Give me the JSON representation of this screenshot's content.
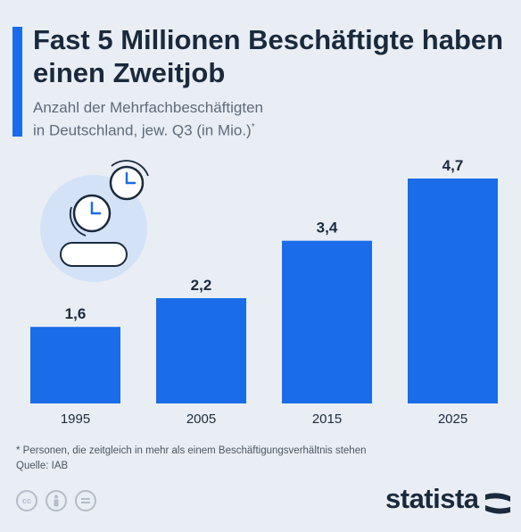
{
  "title": "Fast 5 Millionen Beschäftigte haben einen Zweitjob",
  "subtitle_line1": "Anzahl der Mehrfachbeschäftigten",
  "subtitle_line2": "in Deutschland, jew. Q3 (in Mio.)",
  "subtitle_mark": "*",
  "footnote": "* Personen, die zeitgleich in mehr als einem Beschäftigungsverhältnis stehen",
  "source": "Quelle: IAB",
  "brand": "statista",
  "license_icons": [
    "cc-icon",
    "person-icon",
    "equals-icon"
  ],
  "colors": {
    "bar": "#1a6ce8",
    "background": "#e9eef5",
    "text": "#1a2a3c"
  },
  "chart_data": {
    "type": "bar",
    "title": "Fast 5 Millionen Beschäftigte haben einen Zweitjob",
    "xlabel": "",
    "ylabel": "",
    "categories": [
      "1995",
      "2005",
      "2015",
      "2025"
    ],
    "values": [
      1.6,
      2.2,
      3.4,
      4.7
    ],
    "value_labels": [
      "1,6",
      "2,2",
      "3,4",
      "4,7"
    ],
    "ylim": [
      0,
      4.7
    ],
    "grid": false,
    "legend": "none"
  }
}
